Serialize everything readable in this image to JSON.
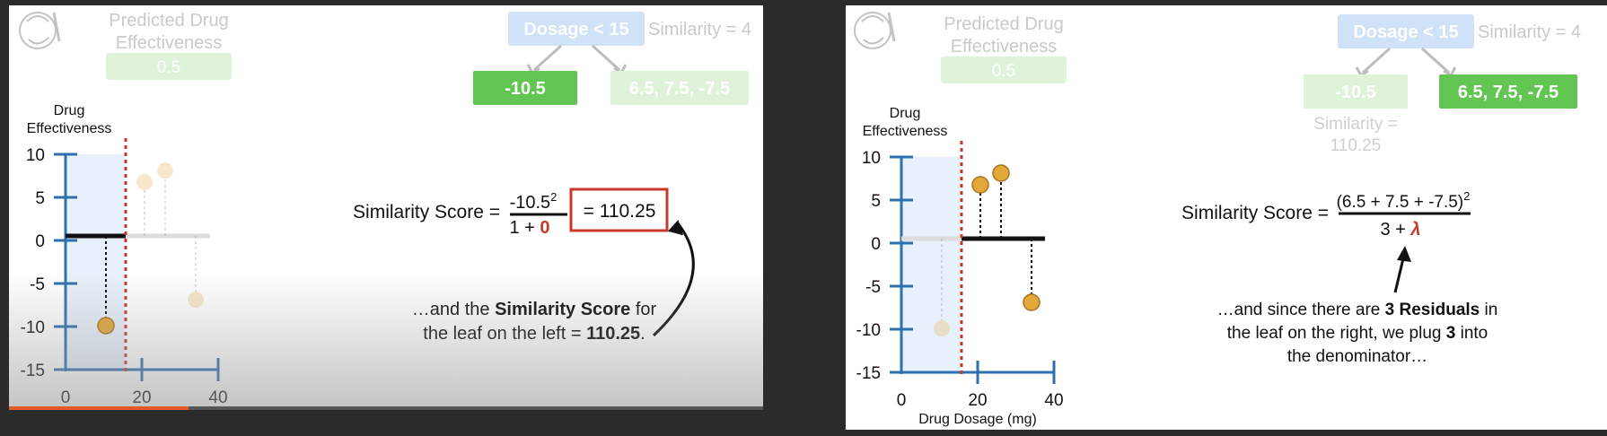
{
  "left": {
    "header": {
      "predicted_label_line1": "Predicted Drug",
      "predicted_label_line2": "Effectiveness",
      "predicted_value": "0.5",
      "root_condition": "Dosage < 15",
      "root_similarity": "Similarity = 4",
      "leaf_left": "-10.5",
      "leaf_right": "6.5, 7.5, -7.5"
    },
    "plot": {
      "ylabel_line1": "Drug",
      "ylabel_line2": "Effectiveness",
      "y_ticks": [
        "10",
        "5",
        "0",
        "-5",
        "-10",
        "-15"
      ],
      "x_ticks": [
        "0",
        "20",
        "40"
      ]
    },
    "formula": {
      "prefix": "Similarity Score =",
      "numerator_base": "-10.5",
      "numerator_exp": "2",
      "denominator_text": "1 + ",
      "denominator_lambda": "0",
      "result": "= 110.25"
    },
    "caption": {
      "part1": "…and the ",
      "bold1": "Similarity Score",
      "part2": " for",
      "part3": "the leaf on the left = ",
      "bold2": "110.25",
      "part4": "."
    }
  },
  "right": {
    "header": {
      "predicted_label_line1": "Predicted Drug",
      "predicted_label_line2": "Effectiveness",
      "predicted_value": "0.5",
      "root_condition": "Dosage < 15",
      "root_similarity": "Similarity = 4",
      "leaf_left": "-10.5",
      "leaf_right": "6.5, 7.5, -7.5",
      "leaf_left_similarity_line1": "Similarity =",
      "leaf_left_similarity_line2": "110.25"
    },
    "plot": {
      "ylabel_line1": "Drug",
      "ylabel_line2": "Effectiveness",
      "y_ticks": [
        "10",
        "5",
        "0",
        "-5",
        "-10",
        "-15"
      ],
      "x_ticks": [
        "0",
        "20",
        "40"
      ],
      "xlabel": "Drug Dosage (mg)"
    },
    "formula": {
      "prefix": "Similarity Score =",
      "numerator": "(6.5 + 7.5 + -7.5)",
      "numerator_exp": "2",
      "denominator_text": "3 + ",
      "denominator_lambda": "λ"
    },
    "caption": {
      "part1": "…and since there are ",
      "bold1": "3 Residuals",
      "part2": " in",
      "part3": "the leaf on the right, we plug ",
      "bold2": "3",
      "part4": " into",
      "part5": "the denominator…"
    }
  },
  "colors": {
    "node_blue": "#b6d4f2",
    "leaf_green": "#63c653",
    "leaf_green_faded": "#dff3da",
    "axis_blue": "#2e6fb0",
    "threshold_red": "#c8392b",
    "point_gold": "#e2a83a",
    "result_box_red": "#c8392b"
  }
}
